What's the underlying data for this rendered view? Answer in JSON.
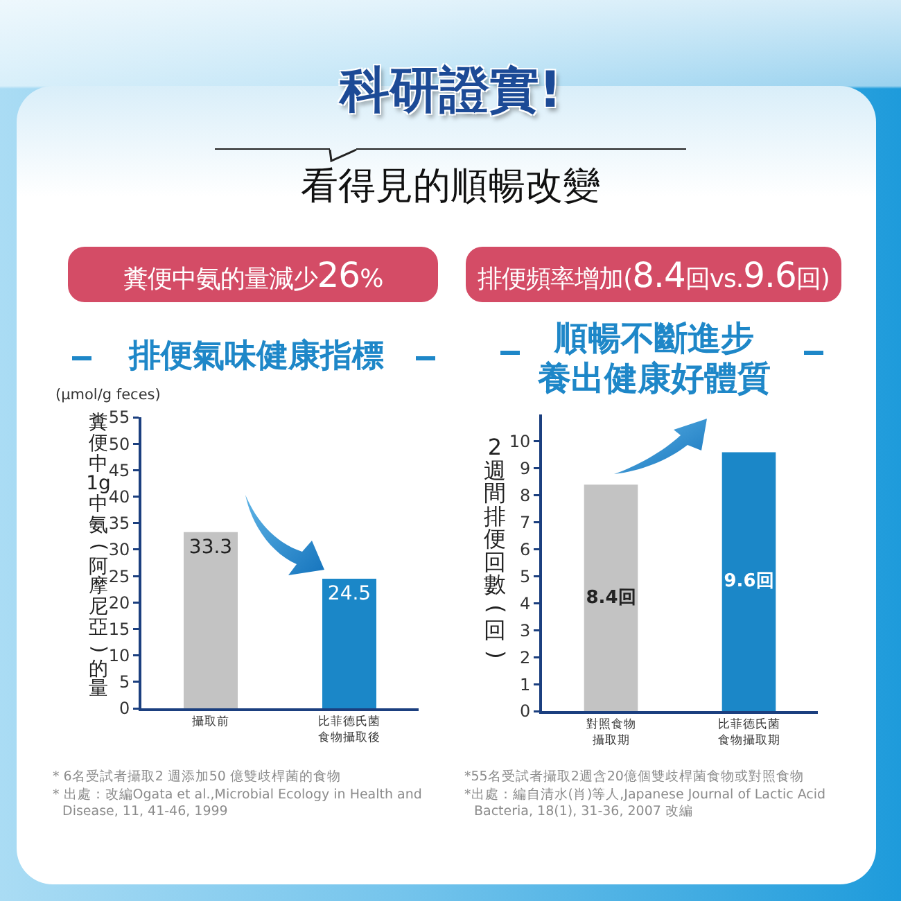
{
  "chart_data": [
    {
      "type": "other",
      "title": "科研證實!",
      "subtitle": "看得見的順暢改變"
    },
    {
      "type": "bar",
      "title": "糞便中氨的量減少26%",
      "subtitle": "排便氣味健康指標",
      "ylabel": "糞便中1g中氨(阿摩尼亞)的量",
      "categories": [
        "攝取前",
        "比菲德氏菌食物攝取後"
      ],
      "values": [
        33.3,
        24.5
      ],
      "colors": [
        "#c3c3c3",
        "#1b87c8"
      ],
      "ylim": [
        0,
        55
      ],
      "yticks": [
        0,
        5,
        10,
        15,
        20,
        25,
        30,
        35,
        40,
        45,
        50,
        55
      ],
      "data_labels": true,
      "annotations": [
        "(μmol/g feces)",
        "* 6名受試者攝取2 週添加50 億雙歧桿菌的食物",
        "* 出處：改編Ogata et al.,Microbial Ecology in Health and Disease, 11, 41-46, 1999"
      ]
    },
    {
      "type": "bar",
      "title": "排便頻率增加(8.4回vs.9.6回)",
      "subtitle": "順暢不斷進步養出健康好體質",
      "ylabel": "2週間排便回數(回)",
      "categories": [
        "對照食物攝取期",
        "比菲德氏菌食物攝取期"
      ],
      "values": [
        8.4,
        9.6
      ],
      "colors": [
        "#c3c3c3",
        "#1b87c8"
      ],
      "ylim": [
        0,
        11
      ],
      "yticks": [
        0,
        1,
        2,
        3,
        4,
        5,
        6,
        7,
        8,
        9,
        10
      ],
      "value_labels": [
        "8.4回",
        "9.6回"
      ],
      "annotations": [
        "*55名受試者攝取2週含20億個雙歧桿菌食物或對照食物",
        "*出處：編自清水(肖)等人,Japanese Journal of Lactic Acid Bacteria, 18(1), 31-36, 2007 改編"
      ]
    }
  ]
}
